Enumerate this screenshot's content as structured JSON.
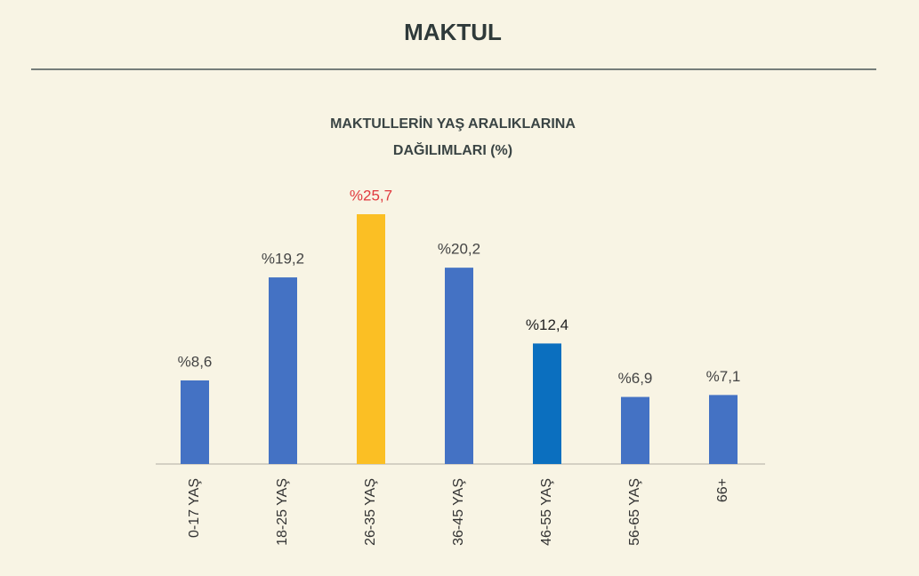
{
  "header": {
    "title": "MAKTUL"
  },
  "chart_data": {
    "type": "bar",
    "title": [
      "MAKTULLERİN YAŞ ARALIKLARINA",
      "DAĞILIMLARI (%)"
    ],
    "categories": [
      "0-17 YAŞ",
      "18-25 YAŞ",
      "26-35 YAŞ",
      "36-45 YAŞ",
      "46-55 YAŞ",
      "56-65 YAŞ",
      "66+"
    ],
    "values": [
      8.6,
      19.2,
      25.7,
      20.2,
      12.4,
      6.9,
      7.1
    ],
    "value_labels": [
      "%8,6",
      "%19,2",
      "%25,7",
      "%20,2",
      "%12,4",
      "%6,9",
      "%7,1"
    ],
    "colors": [
      "#4472c4",
      "#4472c4",
      "#fbbf24",
      "#4472c4",
      "#0b6fbf",
      "#4472c4",
      "#4472c4"
    ],
    "label_colors": [
      "#444444",
      "#444444",
      "#e0393e",
      "#444444",
      "#222222",
      "#444444",
      "#444444"
    ]
  }
}
